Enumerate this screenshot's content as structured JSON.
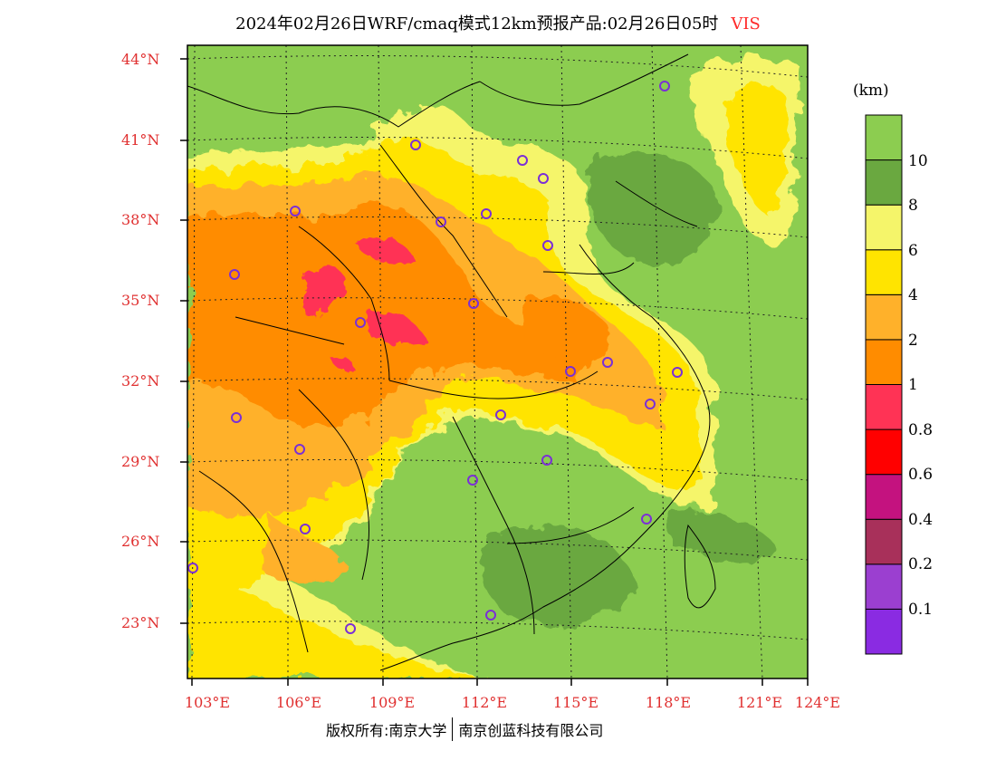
{
  "title": {
    "main": "2024年02月26日WRF/cmaq模式12km预报产品:02月26日05时",
    "variable": "VIS"
  },
  "axes": {
    "lat_labels": [
      "44°N",
      "41°N",
      "38°N",
      "35°N",
      "32°N",
      "29°N",
      "26°N",
      "23°N"
    ],
    "lon_labels": [
      "103°E",
      "106°E",
      "109°E",
      "112°E",
      "115°E",
      "118°E",
      "121°E",
      "124°E"
    ]
  },
  "colorbar": {
    "unit": "(km)",
    "colors": [
      "#8a2be2",
      "#9b3fd0",
      "#a8305a",
      "#c4127f",
      "#ff0000",
      "#ff3355",
      "#ff8c00",
      "#ffb12a",
      "#ffe400",
      "#f5f56a",
      "#6aa840",
      "#8ccd50"
    ],
    "tick_labels": [
      "10",
      "8",
      "6",
      "4",
      "2",
      "1",
      "0.8",
      "0.6",
      "0.4",
      "0.2",
      "0.1"
    ]
  },
  "map": {
    "land_color": "#8ccd50",
    "dark_green": "#6aa840",
    "light_yellow": "#f5f56a",
    "yellow": "#ffe400",
    "light_orange": "#ffb12a",
    "orange": "#ff8c00",
    "pink": "#ff3355",
    "sea_color": "#8ccd50"
  },
  "footer": {
    "left": "版权所有:南京大学",
    "right": "南京创蓝科技有限公司"
  }
}
